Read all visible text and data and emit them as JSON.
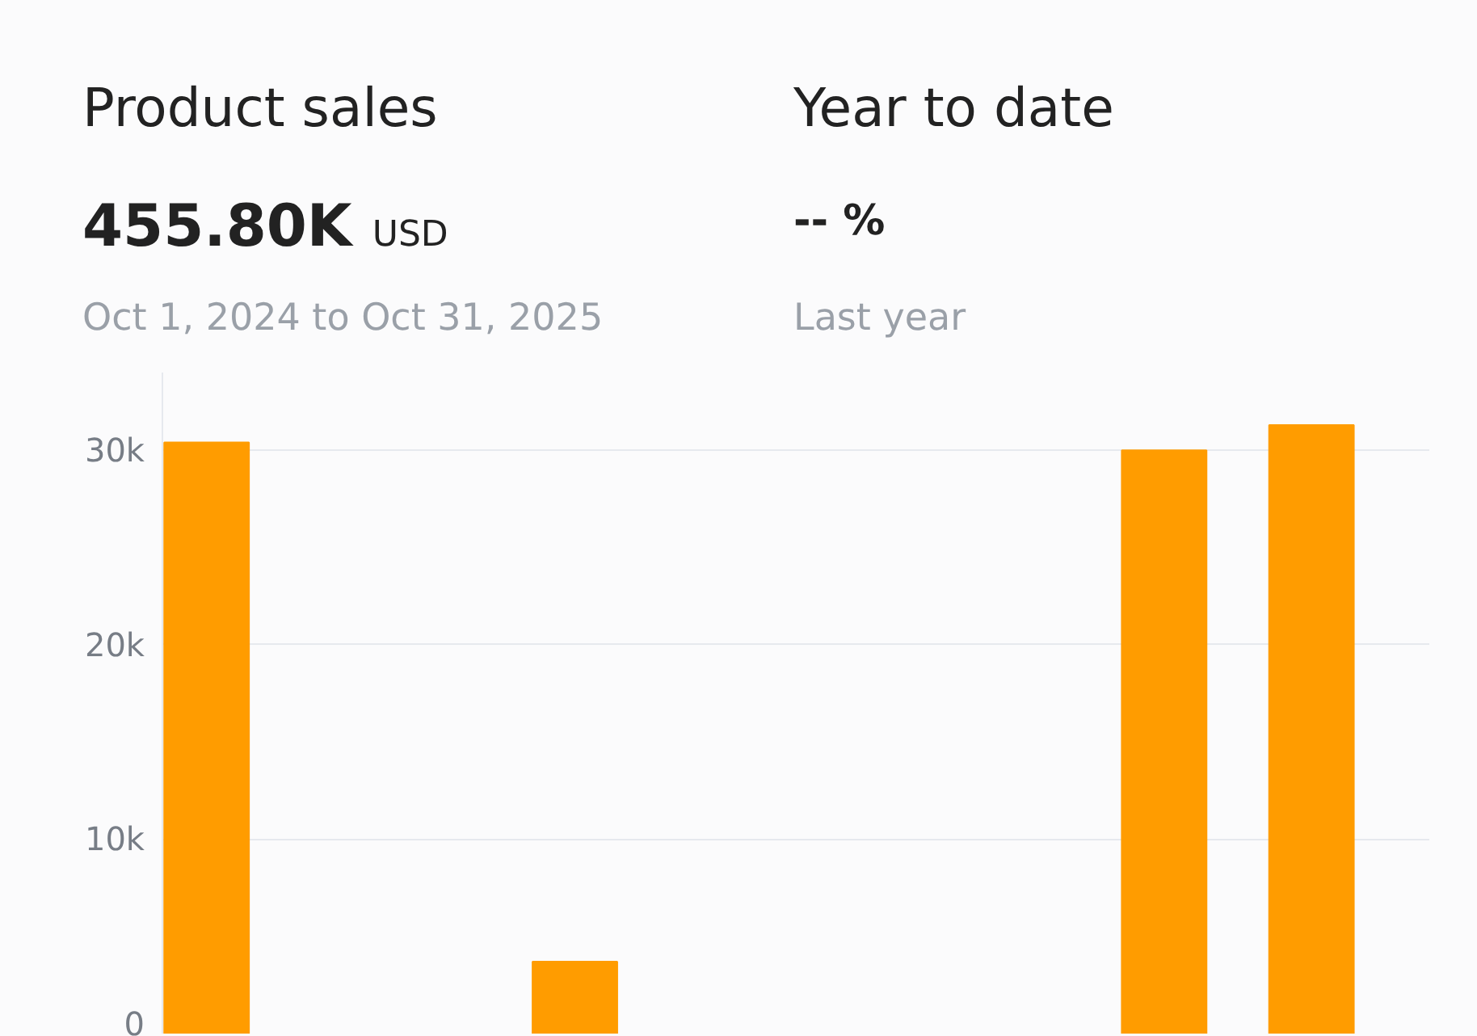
{
  "chart_data": {
    "type": "bar",
    "title": "Product sales",
    "subtitle": "Oct 1, 2024 to Oct 31, 2025",
    "annotations": [
      "455.80K",
      "USD",
      "Year to date",
      "-- %",
      "Last year"
    ],
    "categories": [
      null,
      null,
      null,
      null,
      null,
      null,
      null,
      null,
      null,
      null,
      null,
      null,
      null,
      null,
      null,
      null,
      null
    ],
    "values": [
      30400,
      null,
      null,
      null,
      null,
      3700,
      null,
      null,
      null,
      null,
      null,
      null,
      null,
      30000,
      null,
      31300,
      null
    ],
    "color": "#ff9c00",
    "ylim": [
      0,
      34000
    ],
    "yticks": [
      {
        "value": 0,
        "label": "0"
      },
      {
        "value": 10000,
        "label": "10k"
      },
      {
        "value": 20000,
        "label": "20k"
      },
      {
        "value": 30000,
        "label": "30k"
      }
    ],
    "grid": "y",
    "tick_labels": "y"
  }
}
